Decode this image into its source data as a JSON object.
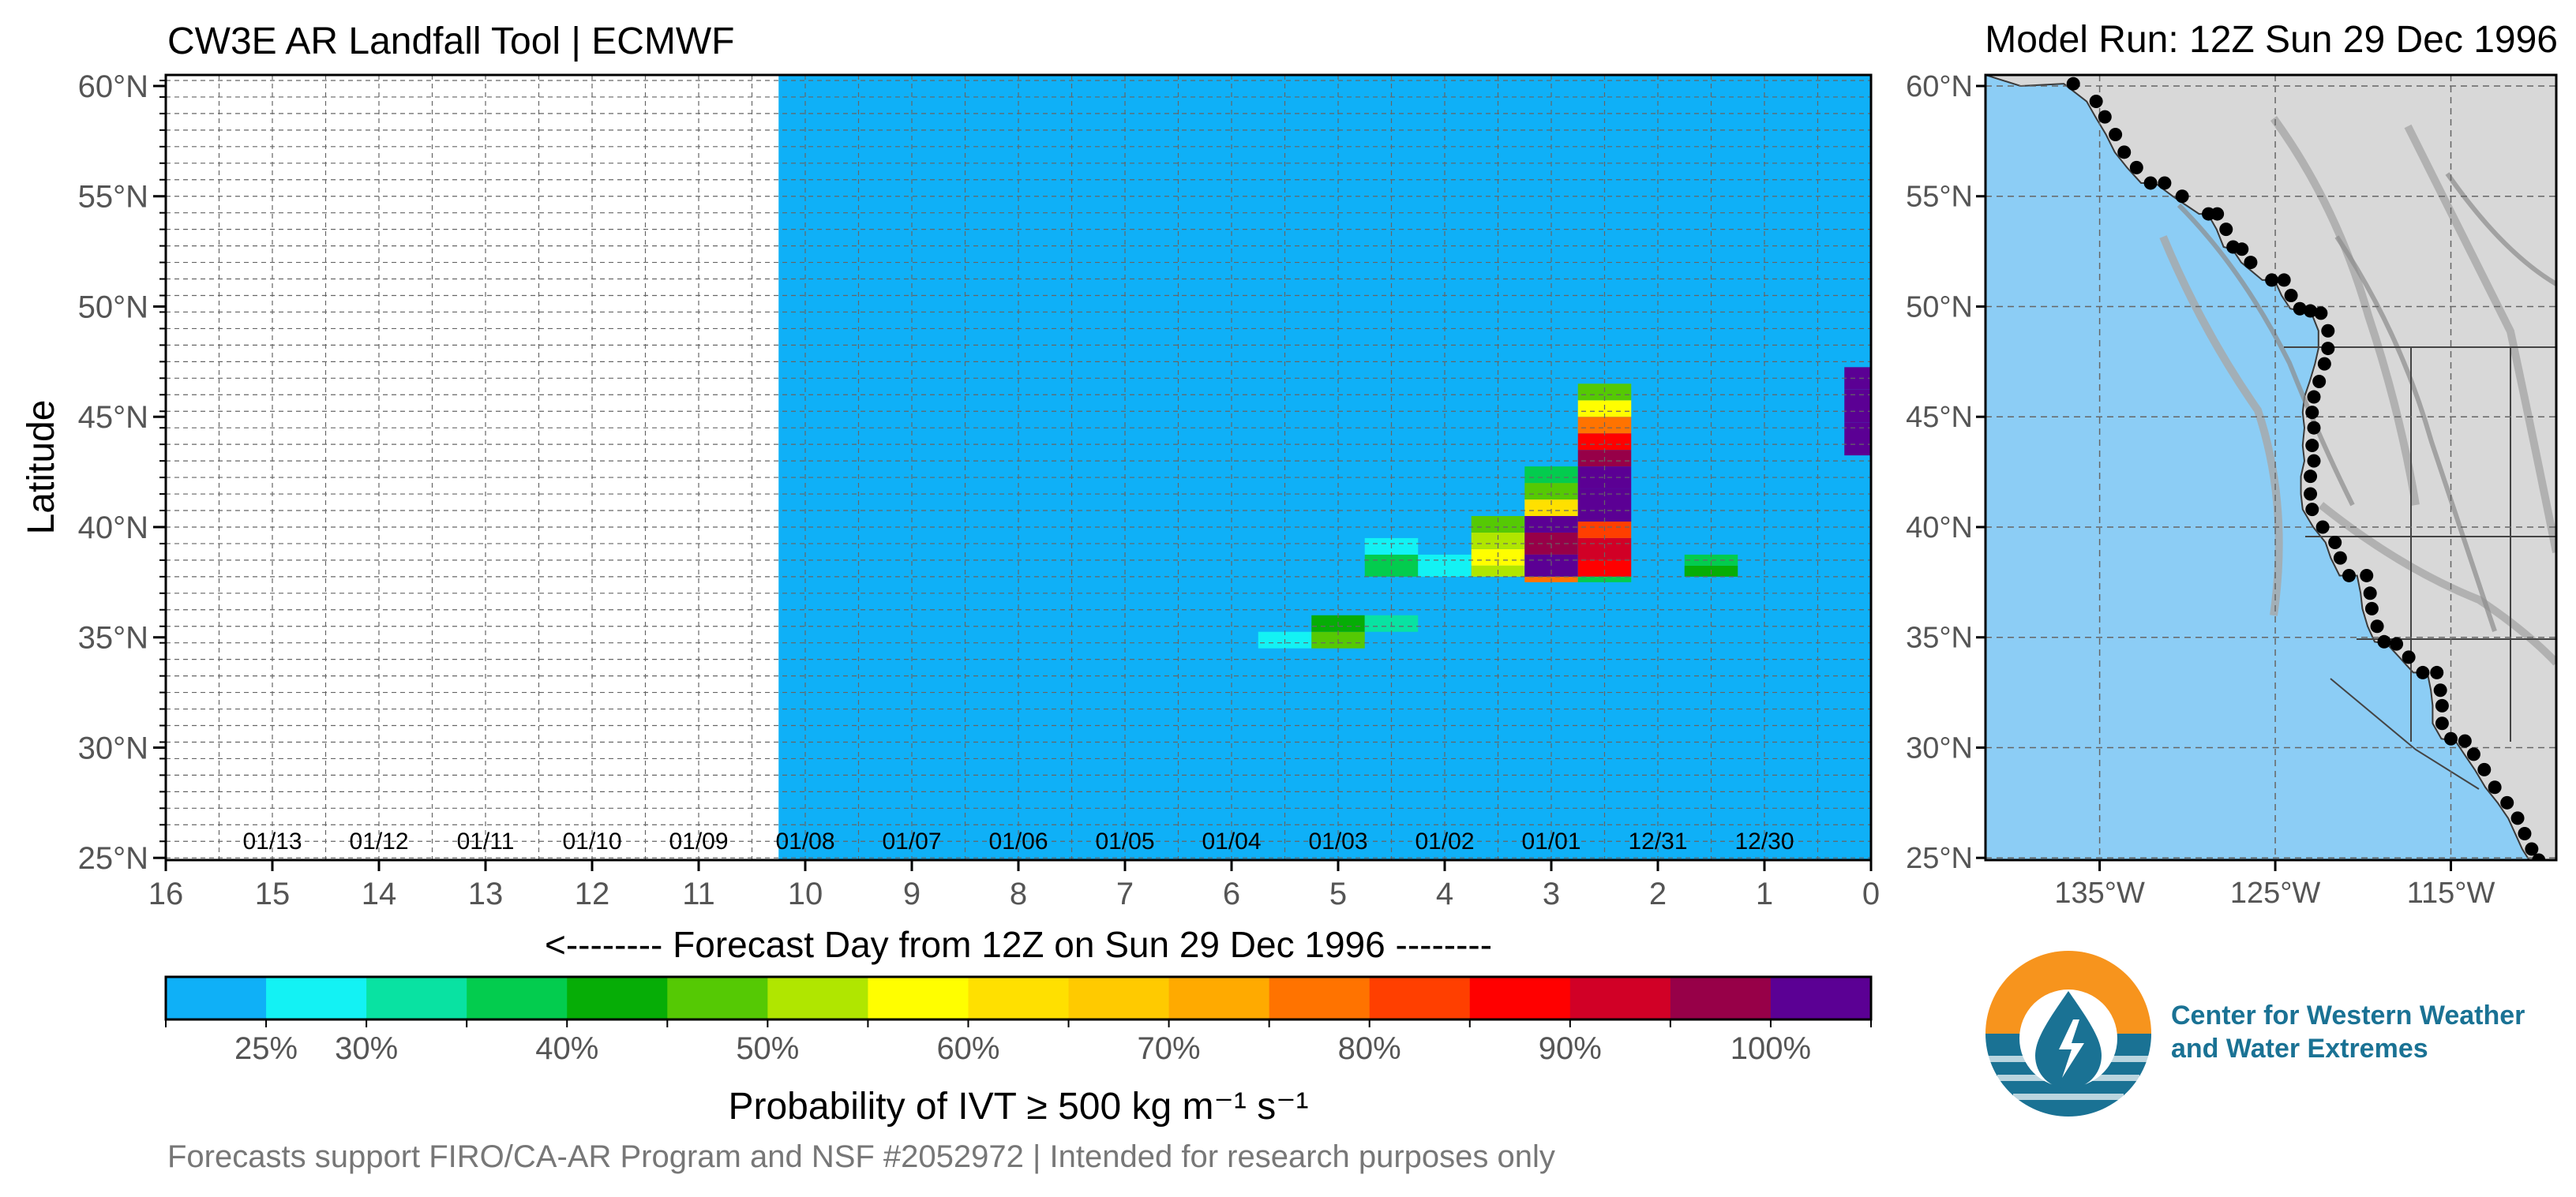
{
  "header": {
    "title": "CW3E AR Landfall Tool | ECMWF",
    "model_run": "Model Run: 12Z Sun 29 Dec 1996"
  },
  "chart_data": {
    "type": "heatmap",
    "title": "CW3E AR Landfall Tool | ECMWF",
    "xlabel": "<-------- Forecast Day from 12Z on Sun 29 Dec 1996 --------",
    "ylabel": "Latitude",
    "x_axis": {
      "range": [
        16,
        0
      ],
      "ticks": [
        16,
        15,
        14,
        13,
        12,
        11,
        10,
        9,
        8,
        7,
        6,
        5,
        4,
        3,
        2,
        1,
        0
      ],
      "tick_labels": [
        "16",
        "15",
        "14",
        "13",
        "12",
        "11",
        "10",
        "9",
        "8",
        "7",
        "6",
        "5",
        "4",
        "3",
        "2",
        "1",
        "0"
      ]
    },
    "y_axis": {
      "range": [
        24.9,
        60.5
      ],
      "ticks": [
        25,
        30,
        35,
        40,
        45,
        50,
        55,
        60
      ],
      "tick_labels": [
        "25°N",
        "30°N",
        "35°N",
        "40°N",
        "45°N",
        "50°N",
        "55°N",
        "60°N"
      ]
    },
    "date_labels": [
      {
        "day": 15.0,
        "label": "01/13"
      },
      {
        "day": 14.0,
        "label": "01/12"
      },
      {
        "day": 13.0,
        "label": "01/11"
      },
      {
        "day": 12.0,
        "label": "01/10"
      },
      {
        "day": 11.0,
        "label": "01/09"
      },
      {
        "day": 10.0,
        "label": "01/08"
      },
      {
        "day": 9.0,
        "label": "01/07"
      },
      {
        "day": 8.0,
        "label": "01/06"
      },
      {
        "day": 7.0,
        "label": "01/05"
      },
      {
        "day": 6.0,
        "label": "01/04"
      },
      {
        "day": 5.0,
        "label": "01/03"
      },
      {
        "day": 4.0,
        "label": "01/02"
      },
      {
        "day": 3.0,
        "label": "01/01"
      },
      {
        "day": 2.0,
        "label": "12/31"
      },
      {
        "day": 1.0,
        "label": "12/30"
      }
    ],
    "forecast_extent_day": 10.25,
    "background_probability": 20,
    "cells": [
      {
        "d0": 5.75,
        "d1": 5.25,
        "l0": 34.5,
        "l1": 35.25,
        "p": 25
      },
      {
        "d0": 5.25,
        "d1": 4.75,
        "l0": 34.5,
        "l1": 35.25,
        "p": 45
      },
      {
        "d0": 5.25,
        "d1": 4.75,
        "l0": 35.25,
        "l1": 36.0,
        "p": 40
      },
      {
        "d0": 4.75,
        "d1": 4.25,
        "l0": 35.25,
        "l1": 36.0,
        "p": 30
      },
      {
        "d0": 4.75,
        "d1": 4.25,
        "l0": 37.75,
        "l1": 38.75,
        "p": 35
      },
      {
        "d0": 4.75,
        "d1": 4.25,
        "l0": 38.75,
        "l1": 39.5,
        "p": 25
      },
      {
        "d0": 4.25,
        "d1": 3.75,
        "l0": 37.75,
        "l1": 38.75,
        "p": 25
      },
      {
        "d0": 3.75,
        "d1": 3.25,
        "l0": 37.75,
        "l1": 38.25,
        "p": 50
      },
      {
        "d0": 3.75,
        "d1": 3.25,
        "l0": 38.25,
        "l1": 39.0,
        "p": 55
      },
      {
        "d0": 3.75,
        "d1": 3.25,
        "l0": 39.0,
        "l1": 39.75,
        "p": 50
      },
      {
        "d0": 3.75,
        "d1": 3.25,
        "l0": 39.75,
        "l1": 40.5,
        "p": 45
      },
      {
        "d0": 3.25,
        "d1": 2.75,
        "l0": 37.5,
        "l1": 37.75,
        "p": 75
      },
      {
        "d0": 3.25,
        "d1": 2.75,
        "l0": 37.75,
        "l1": 38.75,
        "p": 105
      },
      {
        "d0": 3.25,
        "d1": 2.75,
        "l0": 38.75,
        "l1": 39.75,
        "p": 95
      },
      {
        "d0": 3.25,
        "d1": 2.75,
        "l0": 39.75,
        "l1": 40.5,
        "p": 100
      },
      {
        "d0": 3.25,
        "d1": 2.75,
        "l0": 40.5,
        "l1": 41.25,
        "p": 60
      },
      {
        "d0": 3.25,
        "d1": 2.75,
        "l0": 41.25,
        "l1": 42.0,
        "p": 45
      },
      {
        "d0": 3.25,
        "d1": 2.75,
        "l0": 42.0,
        "l1": 42.75,
        "p": 35
      },
      {
        "d0": 2.75,
        "d1": 2.25,
        "l0": 37.5,
        "l1": 37.75,
        "p": 35
      },
      {
        "d0": 2.75,
        "d1": 2.25,
        "l0": 37.75,
        "l1": 38.5,
        "p": 85
      },
      {
        "d0": 2.75,
        "d1": 2.25,
        "l0": 38.5,
        "l1": 39.5,
        "p": 90
      },
      {
        "d0": 2.75,
        "d1": 2.25,
        "l0": 39.5,
        "l1": 40.25,
        "p": 80
      },
      {
        "d0": 2.75,
        "d1": 2.25,
        "l0": 40.25,
        "l1": 41.75,
        "p": 105
      },
      {
        "d0": 2.75,
        "d1": 2.25,
        "l0": 41.75,
        "l1": 42.75,
        "p": 100
      },
      {
        "d0": 2.75,
        "d1": 2.25,
        "l0": 42.75,
        "l1": 43.5,
        "p": 95
      },
      {
        "d0": 2.75,
        "d1": 2.25,
        "l0": 43.5,
        "l1": 44.25,
        "p": 85
      },
      {
        "d0": 2.75,
        "d1": 2.25,
        "l0": 44.25,
        "l1": 45.0,
        "p": 75
      },
      {
        "d0": 2.75,
        "d1": 2.25,
        "l0": 45.0,
        "l1": 45.75,
        "p": 55
      },
      {
        "d0": 2.75,
        "d1": 2.25,
        "l0": 45.75,
        "l1": 46.5,
        "p": 45
      },
      {
        "d0": 1.75,
        "d1": 1.25,
        "l0": 37.75,
        "l1": 38.25,
        "p": 40
      },
      {
        "d0": 1.75,
        "d1": 1.25,
        "l0": 38.25,
        "l1": 38.75,
        "p": 35
      },
      {
        "d0": 0.25,
        "d1": 0.0,
        "l0": 43.25,
        "l1": 44.75,
        "p": 105
      },
      {
        "d0": 0.25,
        "d1": 0.0,
        "l0": 44.75,
        "l1": 46.25,
        "p": 100
      },
      {
        "d0": 0.25,
        "d1": 0.0,
        "l0": 46.25,
        "l1": 47.25,
        "p": 105
      }
    ],
    "colorbar": {
      "label": "Probability of IVT  ≥  500 kg m⁻¹ s⁻¹",
      "ticks": [
        {
          "pos": 1,
          "label": "25%"
        },
        {
          "pos": 2,
          "label": "30%"
        },
        {
          "pos": 4,
          "label": "40%"
        },
        {
          "pos": 6,
          "label": "50%"
        },
        {
          "pos": 8,
          "label": "60%"
        },
        {
          "pos": 10,
          "label": "70%"
        },
        {
          "pos": 12,
          "label": "80%"
        },
        {
          "pos": 14,
          "label": "90%"
        },
        {
          "pos": 16,
          "label": "100%"
        }
      ],
      "colors": [
        "#0fb0f7",
        "#13f2f4",
        "#09e2a2",
        "#03cc4e",
        "#06ad06",
        "#55c904",
        "#b0e600",
        "#fffe00",
        "#ffe000",
        "#ffca00",
        "#ffaa00",
        "#ff7300",
        "#ff3f00",
        "#ff0000",
        "#d10026",
        "#970048",
        "#5b0094"
      ]
    }
  },
  "map": {
    "y_ticks": [
      "25°N",
      "30°N",
      "35°N",
      "40°N",
      "45°N",
      "50°N",
      "55°N",
      "60°N"
    ],
    "x_ticks": [
      "135°W",
      "125°W",
      "115°W"
    ],
    "ocean_color": "#8ccdf5",
    "coast_points": [
      [
        -136.5,
        60.1
      ],
      [
        -135.2,
        59.3
      ],
      [
        -134.7,
        58.6
      ],
      [
        -134.1,
        57.8
      ],
      [
        -133.6,
        57.0
      ],
      [
        -132.9,
        56.3
      ],
      [
        -132.1,
        55.6
      ],
      [
        -131.3,
        55.6
      ],
      [
        -130.3,
        55.0
      ],
      [
        -128.8,
        54.2
      ],
      [
        -128.3,
        54.2
      ],
      [
        -127.8,
        53.5
      ],
      [
        -127.4,
        52.7
      ],
      [
        -126.9,
        52.6
      ],
      [
        -126.4,
        52.0
      ],
      [
        -125.2,
        51.2
      ],
      [
        -124.5,
        51.2
      ],
      [
        -124.1,
        50.5
      ],
      [
        -123.6,
        49.9
      ],
      [
        -123.0,
        49.8
      ],
      [
        -122.4,
        49.7
      ],
      [
        -122.0,
        48.9
      ],
      [
        -122.0,
        48.1
      ],
      [
        -122.2,
        47.4
      ],
      [
        -122.5,
        46.6
      ],
      [
        -122.8,
        45.9
      ],
      [
        -122.9,
        45.2
      ],
      [
        -122.8,
        44.5
      ],
      [
        -122.9,
        43.7
      ],
      [
        -122.8,
        43.0
      ],
      [
        -123.0,
        42.3
      ],
      [
        -123.0,
        41.5
      ],
      [
        -122.9,
        40.8
      ],
      [
        -122.3,
        40.0
      ],
      [
        -121.6,
        39.3
      ],
      [
        -121.3,
        38.6
      ],
      [
        -120.8,
        37.8
      ],
      [
        -119.8,
        37.8
      ],
      [
        -119.6,
        37.0
      ],
      [
        -119.5,
        36.3
      ],
      [
        -119.2,
        35.5
      ],
      [
        -118.8,
        34.8
      ],
      [
        -118.1,
        34.7
      ],
      [
        -117.4,
        34.1
      ],
      [
        -116.6,
        33.4
      ],
      [
        -115.8,
        33.4
      ],
      [
        -115.6,
        32.6
      ],
      [
        -115.5,
        31.9
      ],
      [
        -115.5,
        31.1
      ],
      [
        -115.0,
        30.4
      ],
      [
        -114.2,
        30.3
      ],
      [
        -113.7,
        29.7
      ],
      [
        -113.1,
        29.0
      ],
      [
        -112.5,
        28.2
      ],
      [
        -111.8,
        27.5
      ],
      [
        -111.2,
        26.8
      ],
      [
        -110.8,
        26.1
      ],
      [
        -110.4,
        25.4
      ],
      [
        -110.0,
        24.9
      ]
    ]
  },
  "logo": {
    "line1": "Center for Western Weather",
    "line2": "and Water Extremes"
  },
  "footer": {
    "text": "Forecasts support FIRO/CA-AR Program and NSF #2052972 | Intended for research purposes only"
  }
}
